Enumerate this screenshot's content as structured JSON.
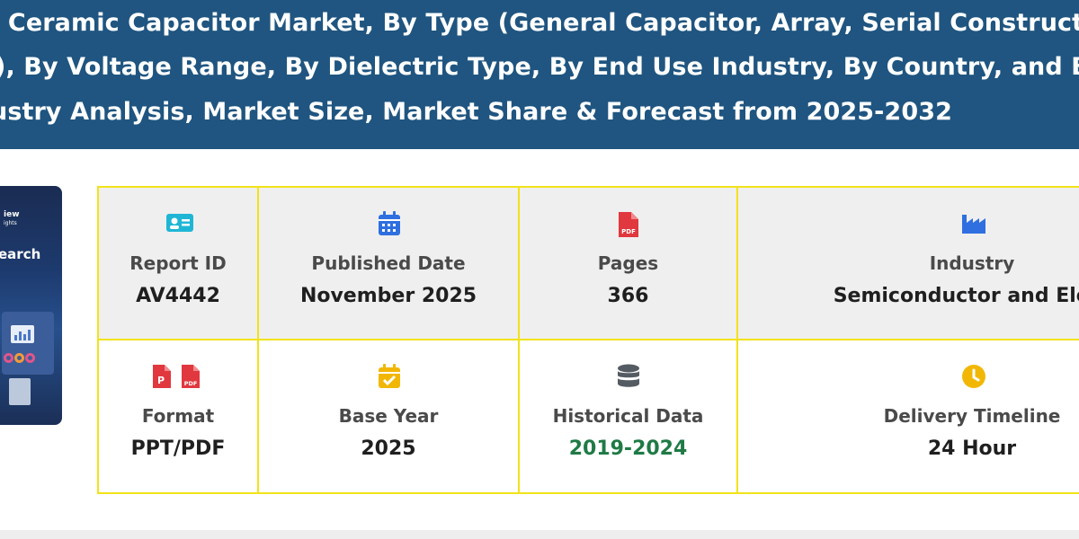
{
  "banner": {
    "line1": "r Ceramic Capacitor Market, By Type (General Capacitor, Array, Serial Constructio",
    "line2": "), By Voltage Range, By Dielectric Type, By End Use Industry, By Country, and By",
    "line3": "ustry Analysis, Market Size, Market Share & Forecast from 2025-2032"
  },
  "cover": {
    "brand": "iew",
    "brand_sub": "ights",
    "word": "earch"
  },
  "details": {
    "report_id": {
      "label": "Report ID",
      "value": "AV4442",
      "icon": "id-card-icon",
      "color": "#1fb6d6"
    },
    "published_date": {
      "label": "Published Date",
      "value": "November 2025",
      "icon": "calendar-icon",
      "color": "#2f6fe0"
    },
    "pages": {
      "label": "Pages",
      "value": "366",
      "icon": "pdf-file-icon",
      "color": "#e0383e"
    },
    "industry": {
      "label": "Industry",
      "value": "Semiconductor and Elect",
      "icon": "factory-icon",
      "color": "#2f6fe0"
    },
    "format": {
      "label": "Format",
      "value": "PPT/PDF",
      "icon": "ppt-pdf-icons",
      "color": "#e0383e"
    },
    "base_year": {
      "label": "Base Year",
      "value": "2025",
      "icon": "calendar-check-icon",
      "color": "#f2b705"
    },
    "historical_data": {
      "label": "Historical Data",
      "value": "2019-2024",
      "icon": "database-icon",
      "color": "#555b63"
    },
    "delivery_timeline": {
      "label": "Delivery Timeline",
      "value": "24 Hour",
      "icon": "clock-icon",
      "color": "#f2b705"
    }
  }
}
